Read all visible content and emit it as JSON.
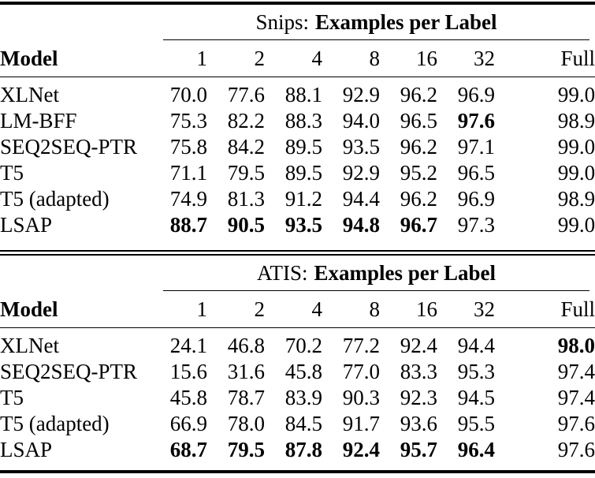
{
  "page": {
    "background": "#ffffff",
    "text_color": "#000000",
    "rule_color": "#000000"
  },
  "tables": [
    {
      "title": {
        "prefix": "Snips:",
        "emphasis": "Examples per Label"
      },
      "columns": {
        "model": "Model",
        "counts": [
          "1",
          "2",
          "4",
          "8",
          "16",
          "32",
          "Full"
        ]
      },
      "rows": [
        {
          "model": "XLNet",
          "cells": [
            {
              "t": "70.0",
              "bold": false
            },
            {
              "t": "77.6",
              "bold": false
            },
            {
              "t": "88.1",
              "bold": false
            },
            {
              "t": "92.9",
              "bold": false
            },
            {
              "t": "96.2",
              "bold": false
            },
            {
              "t": "96.9",
              "bold": false
            },
            {
              "t": "99.0",
              "bold": false
            }
          ]
        },
        {
          "model": "LM-BFF",
          "cells": [
            {
              "t": "75.3",
              "bold": false
            },
            {
              "t": "82.2",
              "bold": false
            },
            {
              "t": "88.3",
              "bold": false
            },
            {
              "t": "94.0",
              "bold": false
            },
            {
              "t": "96.5",
              "bold": false
            },
            {
              "t": "97.6",
              "bold": true
            },
            {
              "t": "98.9",
              "bold": false
            }
          ]
        },
        {
          "model": "SEQ2SEQ-PTR",
          "cells": [
            {
              "t": "75.8",
              "bold": false
            },
            {
              "t": "84.2",
              "bold": false
            },
            {
              "t": "89.5",
              "bold": false
            },
            {
              "t": "93.5",
              "bold": false
            },
            {
              "t": "96.2",
              "bold": false
            },
            {
              "t": "97.1",
              "bold": false
            },
            {
              "t": "99.0",
              "bold": false
            }
          ]
        },
        {
          "model": "T5",
          "cells": [
            {
              "t": "71.1",
              "bold": false
            },
            {
              "t": "79.5",
              "bold": false
            },
            {
              "t": "89.5",
              "bold": false
            },
            {
              "t": "92.9",
              "bold": false
            },
            {
              "t": "95.2",
              "bold": false
            },
            {
              "t": "96.5",
              "bold": false
            },
            {
              "t": "99.0",
              "bold": false
            }
          ]
        },
        {
          "model": "T5 (adapted)",
          "cells": [
            {
              "t": "74.9",
              "bold": false
            },
            {
              "t": "81.3",
              "bold": false
            },
            {
              "t": "91.2",
              "bold": false
            },
            {
              "t": "94.4",
              "bold": false
            },
            {
              "t": "96.2",
              "bold": false
            },
            {
              "t": "96.9",
              "bold": false
            },
            {
              "t": "98.9",
              "bold": false
            }
          ]
        },
        {
          "model": "LSAP",
          "cells": [
            {
              "t": "88.7",
              "bold": true
            },
            {
              "t": "90.5",
              "bold": true
            },
            {
              "t": "93.5",
              "bold": true
            },
            {
              "t": "94.8",
              "bold": true
            },
            {
              "t": "96.7",
              "bold": true
            },
            {
              "t": "97.3",
              "bold": false
            },
            {
              "t": "99.0",
              "bold": false
            }
          ]
        }
      ]
    },
    {
      "title": {
        "prefix": "ATIS:",
        "emphasis": "Examples per Label"
      },
      "columns": {
        "model": "Model",
        "counts": [
          "1",
          "2",
          "4",
          "8",
          "16",
          "32",
          "Full"
        ]
      },
      "rows": [
        {
          "model": "XLNet",
          "cells": [
            {
              "t": "24.1",
              "bold": false
            },
            {
              "t": "46.8",
              "bold": false
            },
            {
              "t": "70.2",
              "bold": false
            },
            {
              "t": "77.2",
              "bold": false
            },
            {
              "t": "92.4",
              "bold": false
            },
            {
              "t": "94.4",
              "bold": false
            },
            {
              "t": "98.0",
              "bold": true
            }
          ]
        },
        {
          "model": "SEQ2SEQ-PTR",
          "cells": [
            {
              "t": "15.6",
              "bold": false
            },
            {
              "t": "31.6",
              "bold": false
            },
            {
              "t": "45.8",
              "bold": false
            },
            {
              "t": "77.0",
              "bold": false
            },
            {
              "t": "83.3",
              "bold": false
            },
            {
              "t": "95.3",
              "bold": false
            },
            {
              "t": "97.4",
              "bold": false
            }
          ]
        },
        {
          "model": "T5",
          "cells": [
            {
              "t": "45.8",
              "bold": false
            },
            {
              "t": "78.7",
              "bold": false
            },
            {
              "t": "83.9",
              "bold": false
            },
            {
              "t": "90.3",
              "bold": false
            },
            {
              "t": "92.3",
              "bold": false
            },
            {
              "t": "94.5",
              "bold": false
            },
            {
              "t": "97.4",
              "bold": false
            }
          ]
        },
        {
          "model": "T5 (adapted)",
          "cells": [
            {
              "t": "66.9",
              "bold": false
            },
            {
              "t": "78.0",
              "bold": false
            },
            {
              "t": "84.5",
              "bold": false
            },
            {
              "t": "91.7",
              "bold": false
            },
            {
              "t": "93.6",
              "bold": false
            },
            {
              "t": "95.5",
              "bold": false
            },
            {
              "t": "97.6",
              "bold": false
            }
          ]
        },
        {
          "model": "LSAP",
          "cells": [
            {
              "t": "68.7",
              "bold": true
            },
            {
              "t": "79.5",
              "bold": true
            },
            {
              "t": "87.8",
              "bold": true
            },
            {
              "t": "92.4",
              "bold": true
            },
            {
              "t": "95.7",
              "bold": true
            },
            {
              "t": "96.4",
              "bold": true
            },
            {
              "t": "97.6",
              "bold": false
            }
          ]
        }
      ]
    }
  ]
}
